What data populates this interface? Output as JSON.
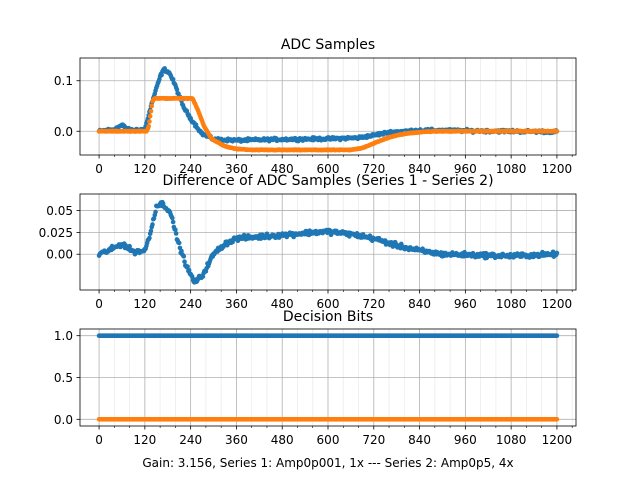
{
  "chart_data": [
    {
      "type": "scatter",
      "title": "ADC Samples",
      "xlabel": "",
      "ylabel": "",
      "xlim": [
        -50,
        1250
      ],
      "ylim": [
        -0.047,
        0.145
      ],
      "xticks": [
        0,
        120,
        240,
        360,
        480,
        600,
        720,
        840,
        960,
        1080,
        1200
      ],
      "yticks": [
        0.0,
        0.1
      ],
      "ytick_labels": [
        "0.0",
        "0.1"
      ],
      "grid": true,
      "series": [
        {
          "name": "Series 1",
          "color": "#1f77b4",
          "noise": 0.004,
          "points": [
            [
              0,
              0
            ],
            [
              40,
              0.004
            ],
            [
              60,
              0.012
            ],
            [
              80,
              0.002
            ],
            [
              120,
              0.004
            ],
            [
              140,
              0.06
            ],
            [
              160,
              0.108
            ],
            [
              170,
              0.123
            ],
            [
              185,
              0.115
            ],
            [
              200,
              0.09
            ],
            [
              220,
              0.05
            ],
            [
              240,
              0.025
            ],
            [
              270,
              -0.005
            ],
            [
              300,
              -0.016
            ],
            [
              360,
              -0.018
            ],
            [
              480,
              -0.016
            ],
            [
              600,
              -0.015
            ],
            [
              680,
              -0.013
            ],
            [
              720,
              -0.008
            ],
            [
              760,
              -0.002
            ],
            [
              840,
              0.002
            ],
            [
              960,
              0.001
            ],
            [
              1200,
              -0.001
            ]
          ]
        },
        {
          "name": "Series 2",
          "color": "#ff7f0e",
          "noise": 0.001,
          "points": [
            [
              0,
              0
            ],
            [
              125,
              0
            ],
            [
              130,
              0.01
            ],
            [
              140,
              0.06
            ],
            [
              145,
              0.065
            ],
            [
              245,
              0.065
            ],
            [
              260,
              0.04
            ],
            [
              275,
              0.01
            ],
            [
              295,
              -0.015
            ],
            [
              330,
              -0.03
            ],
            [
              360,
              -0.035
            ],
            [
              400,
              -0.037
            ],
            [
              600,
              -0.037
            ],
            [
              660,
              -0.037
            ],
            [
              690,
              -0.033
            ],
            [
              720,
              -0.024
            ],
            [
              760,
              -0.012
            ],
            [
              800,
              -0.005
            ],
            [
              850,
              -0.001
            ],
            [
              900,
              0
            ],
            [
              1200,
              0
            ]
          ]
        }
      ]
    },
    {
      "type": "scatter",
      "title": "Difference of ADC Samples (Series 1 - Series 2)",
      "xlabel": "",
      "ylabel": "",
      "xlim": [
        -50,
        1250
      ],
      "ylim": [
        -0.041,
        0.069
      ],
      "xticks": [
        0,
        120,
        240,
        360,
        480,
        600,
        720,
        840,
        960,
        1080,
        1200
      ],
      "yticks": [
        0.0,
        0.025,
        0.05
      ],
      "ytick_labels": [
        "0.00",
        "0.025",
        "0.05"
      ],
      "grid": true,
      "series": [
        {
          "name": "Series 1 - Series 2",
          "color": "#1f77b4",
          "noise": 0.004,
          "points": [
            [
              0,
              0
            ],
            [
              30,
              0.005
            ],
            [
              60,
              0.012
            ],
            [
              90,
              0.003
            ],
            [
              120,
              0.004
            ],
            [
              135,
              0.025
            ],
            [
              150,
              0.055
            ],
            [
              165,
              0.058
            ],
            [
              185,
              0.05
            ],
            [
              210,
              0.01
            ],
            [
              230,
              -0.015
            ],
            [
              250,
              -0.032
            ],
            [
              270,
              -0.025
            ],
            [
              300,
              0.0
            ],
            [
              330,
              0.012
            ],
            [
              360,
              0.018
            ],
            [
              480,
              0.022
            ],
            [
              560,
              0.025
            ],
            [
              600,
              0.026
            ],
            [
              660,
              0.023
            ],
            [
              720,
              0.018
            ],
            [
              780,
              0.01
            ],
            [
              840,
              0.004
            ],
            [
              900,
              0.0
            ],
            [
              1080,
              -0.002
            ],
            [
              1200,
              0.0
            ]
          ]
        }
      ]
    },
    {
      "type": "scatter",
      "title": "Decision Bits",
      "xlabel": "Gain: 3.156, Series 1: Amp0p001, 1x --- Series 2: Amp0p5, 4x",
      "ylabel": "",
      "xlim": [
        -50,
        1250
      ],
      "ylim": [
        -0.08,
        1.08
      ],
      "xticks": [
        0,
        120,
        240,
        360,
        480,
        600,
        720,
        840,
        960,
        1080,
        1200
      ],
      "yticks": [
        0.0,
        0.5,
        1.0
      ],
      "ytick_labels": [
        "0.0",
        "0.5",
        "1.0"
      ],
      "grid": true,
      "series": [
        {
          "name": "Series 1",
          "color": "#1f77b4",
          "noise": 0,
          "points": [
            [
              0,
              1
            ],
            [
              1200,
              1
            ]
          ]
        },
        {
          "name": "Series 2",
          "color": "#ff7f0e",
          "noise": 0,
          "points": [
            [
              0,
              0
            ],
            [
              1200,
              0
            ]
          ]
        }
      ]
    }
  ]
}
